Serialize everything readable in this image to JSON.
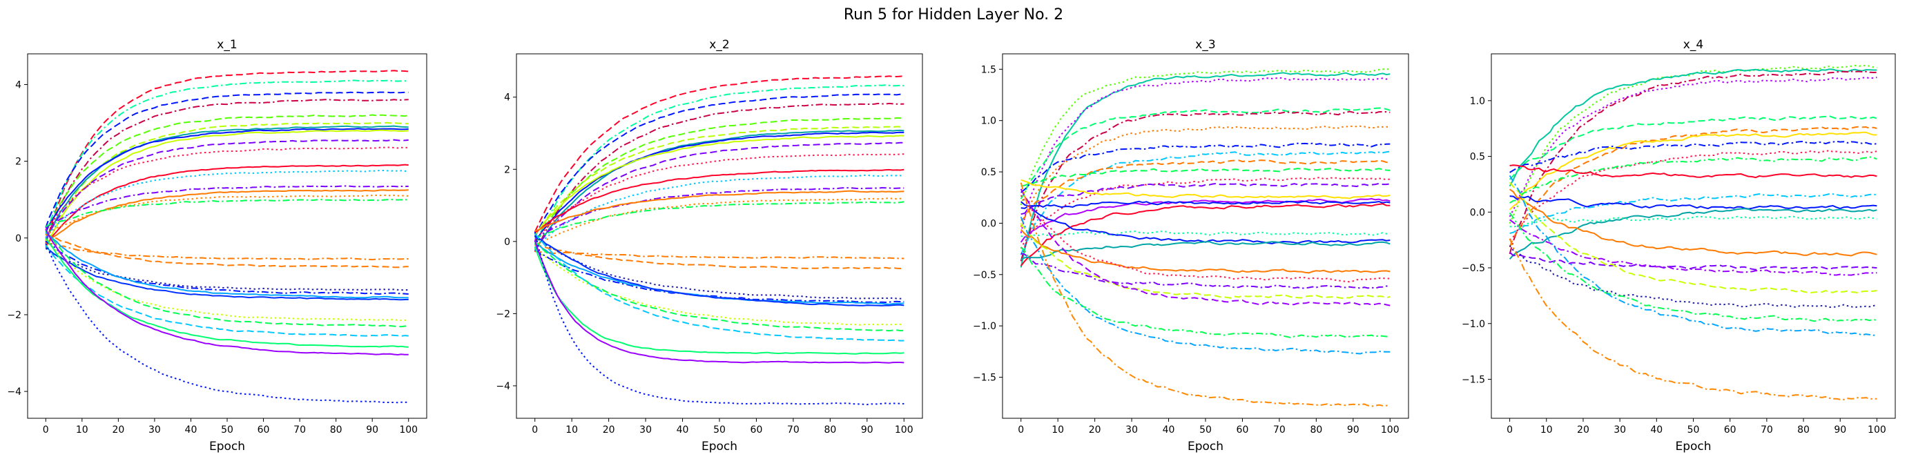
{
  "figure": {
    "title": "Run 5 for Hidden Layer No. 2"
  },
  "chart_data": [
    {
      "type": "line",
      "title": "x_1",
      "xlabel": "Epoch",
      "xlim": [
        -5,
        105
      ],
      "ylim": [
        -4.7,
        4.8
      ],
      "xticks": [
        0,
        10,
        20,
        30,
        40,
        50,
        60,
        70,
        80,
        90,
        100
      ],
      "yticks": [
        -4,
        -2,
        0,
        2,
        4
      ],
      "tick_labels": {
        "x": [
          "0",
          "10",
          "20",
          "30",
          "40",
          "50",
          "60",
          "70",
          "80",
          "90",
          "100"
        ],
        "y": [
          "−4",
          "−2",
          "0",
          "2",
          "4"
        ]
      },
      "series": [
        {
          "final": 4.35,
          "color": "#ff0029",
          "dash": "dashed"
        },
        {
          "final": 4.1,
          "color": "#00ffa0",
          "dash": "dashdot"
        },
        {
          "final": 3.8,
          "color": "#0016ff",
          "dash": "dashed"
        },
        {
          "final": 3.6,
          "color": "#cc0048",
          "dash": "dashdot"
        },
        {
          "final": 3.2,
          "color": "#55ff00",
          "dash": "dashed"
        },
        {
          "final": 3.0,
          "color": "#b4ff00",
          "dash": "dashed"
        },
        {
          "final": 2.9,
          "color": "#00a5a5",
          "dash": "solid"
        },
        {
          "final": 2.85,
          "color": "#0016ff",
          "dash": "solid"
        },
        {
          "final": 2.8,
          "color": "#c8ff00",
          "dash": "solid"
        },
        {
          "final": 2.55,
          "color": "#7a00ff",
          "dash": "dashed"
        },
        {
          "final": 2.35,
          "color": "#ff1a50",
          "dash": "dotted"
        },
        {
          "final": 1.9,
          "color": "#ff0029",
          "dash": "solid"
        },
        {
          "final": 1.75,
          "color": "#00c8ff",
          "dash": "dotted"
        },
        {
          "final": 1.35,
          "color": "#7a00ff",
          "dash": "dashdot"
        },
        {
          "final": 1.25,
          "color": "#ff7a00",
          "dash": "solid"
        },
        {
          "final": 1.1,
          "color": "#ff8800",
          "dash": "dotted"
        },
        {
          "final": 1.0,
          "color": "#00ff50",
          "dash": "dashdot"
        },
        {
          "final": -0.55,
          "color": "#ff7a00",
          "dash": "dashdot"
        },
        {
          "final": -0.75,
          "color": "#ff7a00",
          "dash": "dashed"
        },
        {
          "final": -1.35,
          "color": "#2020aa",
          "dash": "dotted"
        },
        {
          "final": -1.45,
          "color": "#0016ff",
          "dash": "dashdot"
        },
        {
          "final": -1.55,
          "color": "#00a5ff",
          "dash": "solid"
        },
        {
          "final": -1.6,
          "color": "#0030ff",
          "dash": "solid"
        },
        {
          "final": -2.15,
          "color": "#c8ff00",
          "dash": "dotted"
        },
        {
          "final": -2.3,
          "color": "#00ff50",
          "dash": "dashed"
        },
        {
          "final": -2.55,
          "color": "#00c8ff",
          "dash": "dashed"
        },
        {
          "final": -2.85,
          "color": "#00ff70",
          "dash": "solid"
        },
        {
          "final": -3.05,
          "color": "#9a00ff",
          "dash": "solid"
        },
        {
          "final": -4.3,
          "color": "#0016ff",
          "dash": "dotted"
        }
      ]
    },
    {
      "type": "line",
      "title": "x_2",
      "xlabel": "Epoch",
      "xlim": [
        -5,
        105
      ],
      "ylim": [
        -4.9,
        5.2
      ],
      "xticks": [
        0,
        10,
        20,
        30,
        40,
        50,
        60,
        70,
        80,
        90,
        100
      ],
      "yticks": [
        -4,
        -2,
        0,
        2,
        4
      ],
      "tick_labels": {
        "x": [
          "0",
          "10",
          "20",
          "30",
          "40",
          "50",
          "60",
          "70",
          "80",
          "90",
          "100"
        ],
        "y": [
          "−4",
          "−2",
          "0",
          "2",
          "4"
        ]
      },
      "series": [
        {
          "final": 4.6,
          "color": "#ff0029",
          "dash": "dashed"
        },
        {
          "final": 4.35,
          "color": "#00ffa0",
          "dash": "dashdot"
        },
        {
          "final": 4.1,
          "color": "#0016ff",
          "dash": "dashed"
        },
        {
          "final": 3.85,
          "color": "#cc0048",
          "dash": "dashdot"
        },
        {
          "final": 3.45,
          "color": "#55ff00",
          "dash": "dashed"
        },
        {
          "final": 3.2,
          "color": "#b4ff00",
          "dash": "dashed"
        },
        {
          "final": 3.1,
          "color": "#00a5a5",
          "dash": "solid"
        },
        {
          "final": 3.05,
          "color": "#0016ff",
          "dash": "solid"
        },
        {
          "final": 2.95,
          "color": "#c8ff00",
          "dash": "solid"
        },
        {
          "final": 2.75,
          "color": "#7a00ff",
          "dash": "dashed"
        },
        {
          "final": 2.45,
          "color": "#ff1a50",
          "dash": "dotted"
        },
        {
          "final": 2.0,
          "color": "#ff0029",
          "dash": "solid"
        },
        {
          "final": 1.85,
          "color": "#00c8ff",
          "dash": "dotted"
        },
        {
          "final": 1.5,
          "color": "#7a00ff",
          "dash": "dashdot"
        },
        {
          "final": 1.4,
          "color": "#ff7a00",
          "dash": "solid"
        },
        {
          "final": 1.2,
          "color": "#ff8800",
          "dash": "dotted"
        },
        {
          "final": 1.1,
          "color": "#00ff50",
          "dash": "dashdot"
        },
        {
          "final": -0.45,
          "color": "#ff7a00",
          "dash": "dashdot"
        },
        {
          "final": -0.75,
          "color": "#ff7a00",
          "dash": "dashed"
        },
        {
          "final": -1.6,
          "color": "#2020aa",
          "dash": "dotted"
        },
        {
          "final": -1.7,
          "color": "#0016ff",
          "dash": "dashdot"
        },
        {
          "final": -1.75,
          "color": "#00a5ff",
          "dash": "solid"
        },
        {
          "final": -1.8,
          "color": "#0030ff",
          "dash": "solid"
        },
        {
          "final": -2.35,
          "color": "#c8ff00",
          "dash": "dotted"
        },
        {
          "final": -2.5,
          "color": "#00ff50",
          "dash": "dashed"
        },
        {
          "final": -2.8,
          "color": "#00c8ff",
          "dash": "dashed"
        },
        {
          "final": -3.1,
          "color": "#00ff70",
          "dash": "solid"
        },
        {
          "final": -3.35,
          "color": "#9a00ff",
          "dash": "solid"
        },
        {
          "final": -4.5,
          "color": "#0016ff",
          "dash": "dotted"
        }
      ]
    },
    {
      "type": "line",
      "title": "x_3",
      "xlabel": "Epoch",
      "xlim": [
        -5,
        105
      ],
      "ylim": [
        -1.9,
        1.65
      ],
      "xticks": [
        0,
        10,
        20,
        30,
        40,
        50,
        60,
        70,
        80,
        90,
        100
      ],
      "yticks": [
        -1.5,
        -1.0,
        -0.5,
        0.0,
        0.5,
        1.0,
        1.5
      ],
      "tick_labels": {
        "x": [
          "0",
          "10",
          "20",
          "30",
          "40",
          "50",
          "60",
          "70",
          "80",
          "90",
          "100"
        ],
        "y": [
          "−1.5",
          "−1.0",
          "−0.5",
          "0.0",
          "0.5",
          "1.0",
          "1.5"
        ]
      },
      "series": [
        {
          "final": 1.48,
          "color": "#55ff00",
          "dash": "dotted"
        },
        {
          "final": 1.45,
          "color": "#00c8a0",
          "dash": "solid"
        },
        {
          "final": 1.4,
          "color": "#b000ff",
          "dash": "dotted"
        },
        {
          "final": 1.1,
          "color": "#00ff70",
          "dash": "dashed"
        },
        {
          "final": 1.08,
          "color": "#cc0048",
          "dash": "dashdot"
        },
        {
          "final": 0.93,
          "color": "#ff7a00",
          "dash": "dotted"
        },
        {
          "final": 0.76,
          "color": "#0016ff",
          "dash": "dashdot"
        },
        {
          "final": 0.68,
          "color": "#00c8ff",
          "dash": "dashdot"
        },
        {
          "final": 0.6,
          "color": "#ff7a00",
          "dash": "dashed"
        },
        {
          "final": 0.52,
          "color": "#00ff50",
          "dash": "dashed"
        },
        {
          "final": 0.43,
          "color": "#ff1a50",
          "dash": "dotted"
        },
        {
          "final": 0.38,
          "color": "#7a00ff",
          "dash": "dashed"
        },
        {
          "final": 0.26,
          "color": "#ffe000",
          "dash": "solid"
        },
        {
          "final": 0.22,
          "color": "#b000ff",
          "dash": "solid"
        },
        {
          "final": 0.2,
          "color": "#0016ff",
          "dash": "solid"
        },
        {
          "final": 0.17,
          "color": "#ff0029",
          "dash": "solid"
        },
        {
          "final": -0.1,
          "color": "#00ffa0",
          "dash": "dotted"
        },
        {
          "final": -0.18,
          "color": "#0016ff",
          "dash": "solid"
        },
        {
          "final": -0.2,
          "color": "#00a5a5",
          "dash": "solid"
        },
        {
          "final": -0.47,
          "color": "#ff7a00",
          "dash": "solid"
        },
        {
          "final": -0.55,
          "color": "#ff1a50",
          "dash": "dotted"
        },
        {
          "final": -0.62,
          "color": "#7a00ff",
          "dash": "dashdot"
        },
        {
          "final": -0.72,
          "color": "#c8ff00",
          "dash": "dashed"
        },
        {
          "final": -0.79,
          "color": "#9a00ff",
          "dash": "dashed"
        },
        {
          "final": -1.1,
          "color": "#00ff50",
          "dash": "dashdot"
        },
        {
          "final": -1.25,
          "color": "#00a5ff",
          "dash": "dashdot"
        },
        {
          "final": -1.78,
          "color": "#ff8800",
          "dash": "dashdot"
        }
      ]
    },
    {
      "type": "line",
      "title": "x_4",
      "xlabel": "Epoch",
      "xlim": [
        -5,
        105
      ],
      "ylim": [
        -1.85,
        1.42
      ],
      "xticks": [
        0,
        10,
        20,
        30,
        40,
        50,
        60,
        70,
        80,
        90,
        100
      ],
      "yticks": [
        -1.5,
        -1.0,
        -0.5,
        0.0,
        0.5,
        1.0
      ],
      "tick_labels": {
        "x": [
          "0",
          "10",
          "20",
          "30",
          "40",
          "50",
          "60",
          "70",
          "80",
          "90",
          "100"
        ],
        "y": [
          "−1.5",
          "−1.0",
          "−0.5",
          "0.0",
          "0.5",
          "1.0"
        ]
      },
      "series": [
        {
          "final": 1.3,
          "color": "#55ff00",
          "dash": "dotted"
        },
        {
          "final": 1.28,
          "color": "#00c8a0",
          "dash": "solid"
        },
        {
          "final": 1.25,
          "color": "#cc0048",
          "dash": "dashdot"
        },
        {
          "final": 1.2,
          "color": "#b000ff",
          "dash": "dotted"
        },
        {
          "final": 0.85,
          "color": "#00ff70",
          "dash": "dashed"
        },
        {
          "final": 0.75,
          "color": "#ff7a00",
          "dash": "dashed"
        },
        {
          "final": 0.7,
          "color": "#ffe000",
          "dash": "solid"
        },
        {
          "final": 0.62,
          "color": "#0016ff",
          "dash": "dashdot"
        },
        {
          "final": 0.55,
          "color": "#ff1a50",
          "dash": "dotted"
        },
        {
          "final": 0.48,
          "color": "#00ff50",
          "dash": "dashdot"
        },
        {
          "final": 0.32,
          "color": "#ff0029",
          "dash": "solid"
        },
        {
          "final": 0.15,
          "color": "#00c8ff",
          "dash": "dashdot"
        },
        {
          "final": 0.04,
          "color": "#0016ff",
          "dash": "solid"
        },
        {
          "final": 0.02,
          "color": "#00a5a5",
          "dash": "solid"
        },
        {
          "final": -0.05,
          "color": "#00ffa0",
          "dash": "dotted"
        },
        {
          "final": -0.38,
          "color": "#ff7a00",
          "dash": "solid"
        },
        {
          "final": -0.5,
          "color": "#7a00ff",
          "dash": "dashed"
        },
        {
          "final": -0.55,
          "color": "#9a00ff",
          "dash": "dashdot"
        },
        {
          "final": -0.72,
          "color": "#c8ff00",
          "dash": "dashed"
        },
        {
          "final": -0.85,
          "color": "#2020aa",
          "dash": "dotted"
        },
        {
          "final": -0.98,
          "color": "#00ff50",
          "dash": "dashdot"
        },
        {
          "final": -1.1,
          "color": "#00a5ff",
          "dash": "dashdot"
        },
        {
          "final": -1.68,
          "color": "#ff8800",
          "dash": "dashdot"
        }
      ]
    }
  ]
}
